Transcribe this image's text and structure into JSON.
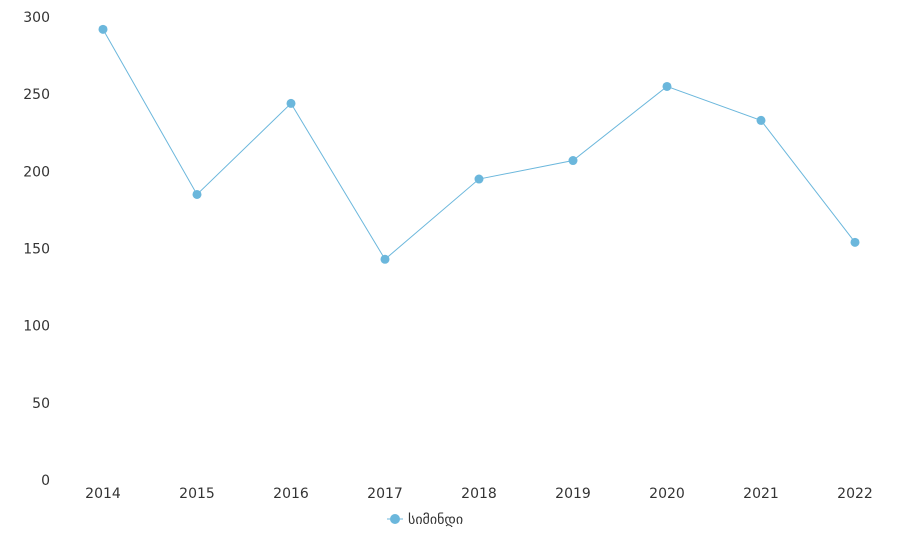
{
  "chart_data": {
    "type": "line",
    "categories": [
      "2014",
      "2015",
      "2016",
      "2017",
      "2018",
      "2019",
      "2020",
      "2021",
      "2022"
    ],
    "series": [
      {
        "name": "სიმინდი",
        "values": [
          292,
          185,
          244,
          143,
          195,
          207,
          255,
          233,
          154
        ]
      }
    ],
    "ylim": [
      0,
      300
    ],
    "yticks": [
      0,
      50,
      100,
      150,
      200,
      250,
      300
    ],
    "grid": false,
    "legend_position": "bottom-center",
    "color": "#6bb7dc"
  }
}
